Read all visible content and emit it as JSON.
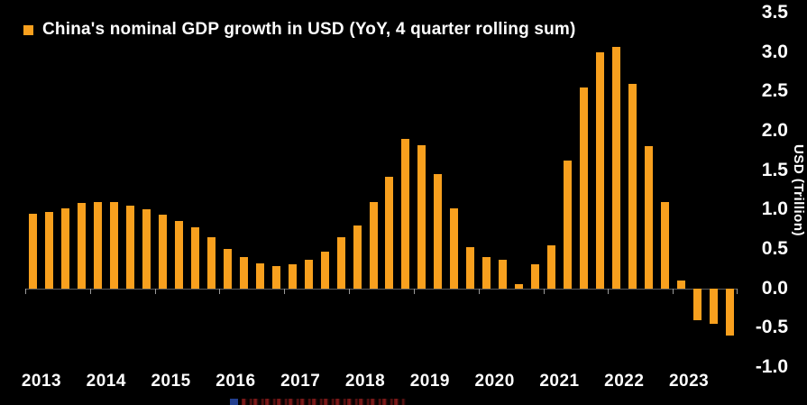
{
  "colors": {
    "bar": "#f8a01e",
    "background": "#000000",
    "text": "#ffffff",
    "zero_line": "#5a5a5a"
  },
  "chart_data": {
    "type": "bar",
    "title": "China's nominal GDP growth in USD (YoY, 4 quarter rolling sum)",
    "ylabel": "USD (Trillion)",
    "xlabel": "",
    "ylim": [
      -1.0,
      3.5
    ],
    "grid": false,
    "legend_position": "top-left",
    "yticks": [
      "3.5",
      "3.0",
      "2.5",
      "2.0",
      "1.5",
      "1.0",
      "0.5",
      "0.0",
      "-0.5",
      "-1.0"
    ],
    "xticks": [
      "2013",
      "2014",
      "2015",
      "2016",
      "2017",
      "2018",
      "2019",
      "2020",
      "2021",
      "2022",
      "2023"
    ],
    "quarters_per_year": 4,
    "x": [
      "2013 Q1",
      "2013 Q2",
      "2013 Q3",
      "2013 Q4",
      "2014 Q1",
      "2014 Q2",
      "2014 Q3",
      "2014 Q4",
      "2015 Q1",
      "2015 Q2",
      "2015 Q3",
      "2015 Q4",
      "2016 Q1",
      "2016 Q2",
      "2016 Q3",
      "2016 Q4",
      "2017 Q1",
      "2017 Q2",
      "2017 Q3",
      "2017 Q4",
      "2018 Q1",
      "2018 Q2",
      "2018 Q3",
      "2018 Q4",
      "2019 Q1",
      "2019 Q2",
      "2019 Q3",
      "2019 Q4",
      "2020 Q1",
      "2020 Q2",
      "2020 Q3",
      "2020 Q4",
      "2021 Q1",
      "2021 Q2",
      "2021 Q3",
      "2021 Q4",
      "2022 Q1",
      "2022 Q2",
      "2022 Q3",
      "2022 Q4",
      "2023 Q1",
      "2023 Q2",
      "2023 Q3",
      "2023 Q4"
    ],
    "values": [
      0.95,
      0.97,
      1.02,
      1.08,
      1.1,
      1.1,
      1.05,
      1.0,
      0.93,
      0.85,
      0.78,
      0.65,
      0.5,
      0.4,
      0.32,
      0.28,
      0.3,
      0.36,
      0.46,
      0.65,
      0.8,
      1.1,
      1.42,
      1.9,
      1.82,
      1.45,
      1.02,
      0.52,
      0.4,
      0.36,
      0.05,
      0.3,
      0.55,
      1.62,
      2.55,
      3.0,
      3.07,
      2.6,
      1.8,
      1.1,
      0.1,
      -0.4,
      -0.45,
      -0.6
    ]
  }
}
